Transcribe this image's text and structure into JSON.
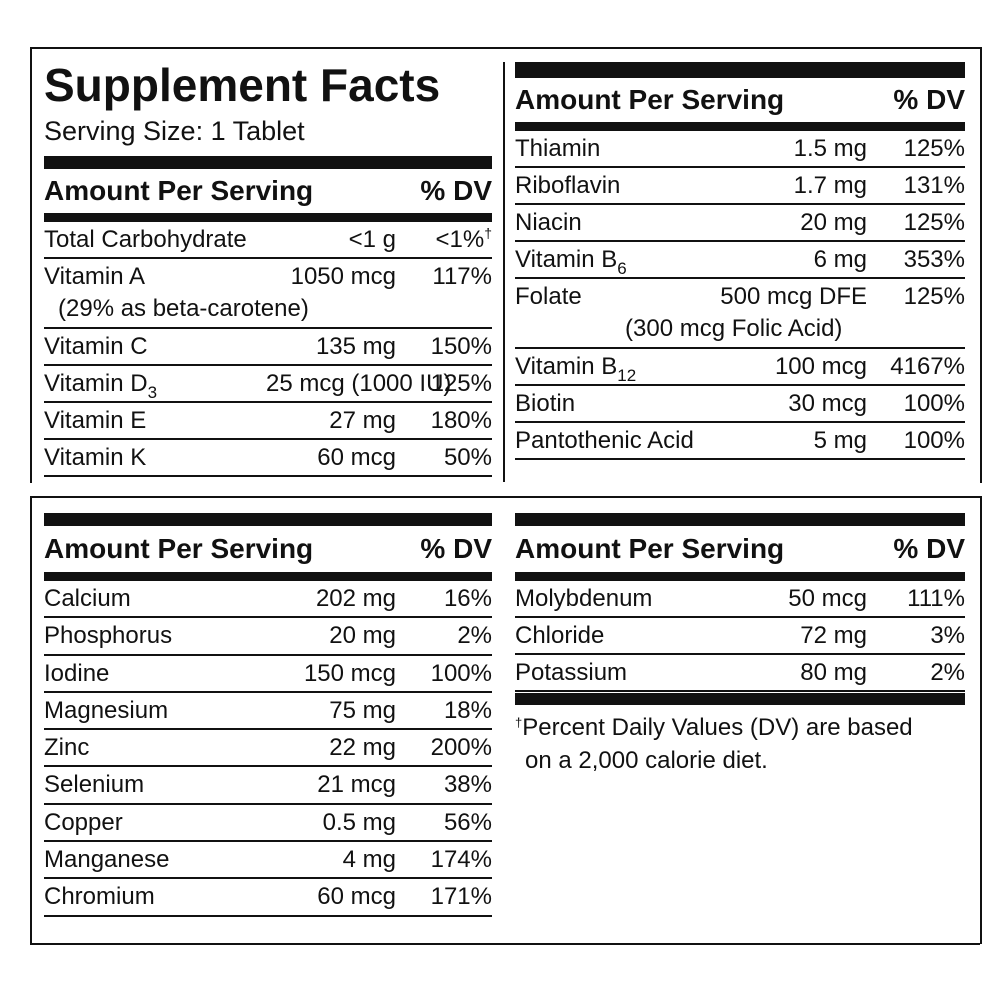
{
  "title": "Supplement Facts",
  "serving_size": "Serving Size: 1 Tablet",
  "header": {
    "amount": "Amount Per Serving",
    "dv": "% DV"
  },
  "panel1": [
    {
      "name": "Total Carbohydrate",
      "amount": "<1 g",
      "dv": "<1%",
      "dv_mark": "†"
    },
    {
      "name": "Vitamin A",
      "amount": "1050 mcg",
      "dv": "117%",
      "note": "(29% as beta-carotene)"
    },
    {
      "name": "Vitamin C",
      "amount": "135 mg",
      "dv": "150%"
    },
    {
      "name": "Vitamin D",
      "sub": "3",
      "amount": "25 mcg (1000 IU)",
      "dv": "125%"
    },
    {
      "name": "Vitamin E",
      "amount": "27 mg",
      "dv": "180%"
    },
    {
      "name": "Vitamin K",
      "amount": "60 mcg",
      "dv": "50%"
    }
  ],
  "panel2": [
    {
      "name": "Thiamin",
      "amount": "1.5 mg",
      "dv": "125%"
    },
    {
      "name": "Riboflavin",
      "amount": "1.7 mg",
      "dv": "131%"
    },
    {
      "name": "Niacin",
      "amount": "20 mg",
      "dv": "125%"
    },
    {
      "name": "Vitamin B",
      "sub": "6",
      "amount": "6 mg",
      "dv": "353%"
    },
    {
      "name": "Folate",
      "amount": "500 mcg DFE",
      "dv": "125%",
      "note": "(300 mcg Folic Acid)"
    },
    {
      "name": "Vitamin B",
      "sub": "12",
      "amount": "100 mcg",
      "dv": "4167%"
    },
    {
      "name": "Biotin",
      "amount": "30 mcg",
      "dv": "100%"
    },
    {
      "name": "Pantothenic Acid",
      "amount": "5 mg",
      "dv": "100%"
    }
  ],
  "panel3": [
    {
      "name": "Calcium",
      "amount": "202 mg",
      "dv": "16%"
    },
    {
      "name": "Phosphorus",
      "amount": "20 mg",
      "dv": "2%"
    },
    {
      "name": "Iodine",
      "amount": "150 mcg",
      "dv": "100%"
    },
    {
      "name": "Magnesium",
      "amount": "75 mg",
      "dv": "18%"
    },
    {
      "name": "Zinc",
      "amount": "22 mg",
      "dv": "200%"
    },
    {
      "name": "Selenium",
      "amount": "21 mcg",
      "dv": "38%"
    },
    {
      "name": "Copper",
      "amount": "0.5 mg",
      "dv": "56%"
    },
    {
      "name": "Manganese",
      "amount": "4 mg",
      "dv": "174%"
    },
    {
      "name": "Chromium",
      "amount": "60 mcg",
      "dv": "171%"
    }
  ],
  "panel4": [
    {
      "name": "Molybdenum",
      "amount": "50 mcg",
      "dv": "111%"
    },
    {
      "name": "Chloride",
      "amount": "72 mg",
      "dv": "3%"
    },
    {
      "name": "Potassium",
      "amount": "80 mg",
      "dv": "2%"
    }
  ],
  "footnote": {
    "mark": "†",
    "line1": "Percent Daily Values (DV) are based",
    "line2": "on a 2,000 calorie diet."
  }
}
